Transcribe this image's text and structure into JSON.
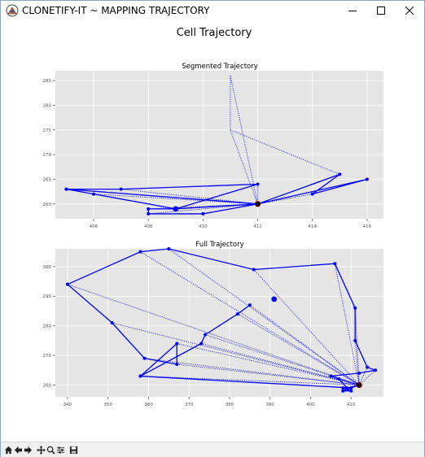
{
  "window": {
    "title": "CLONETIFY-IT ~ MAPPING TRAJECTORY",
    "icons": {
      "app": "clonetify-logo-icon",
      "minimize": "minimize-icon",
      "maximize": "maximize-icon",
      "close": "close-icon"
    }
  },
  "figure": {
    "suptitle": "Cell Trajectory"
  },
  "toolbar": {
    "icons": [
      "home-icon",
      "back-arrow-icon",
      "forward-arrow-icon",
      "pan-icon",
      "zoom-icon",
      "configure-subplots-icon",
      "save-icon"
    ]
  },
  "colors": {
    "axes_bg": "#e5e5e5",
    "grid": "#ffffff",
    "line": "#0000ff",
    "final_marker": "#000000",
    "final_marker_edge": "#8b0000"
  },
  "chart_data": [
    {
      "type": "line",
      "title": "Segmented Trajectory",
      "xlabel": "",
      "ylabel": "",
      "xlim": [
        404.6,
        416.6
      ],
      "ylim": [
        257,
        287
      ],
      "xticks": [
        406,
        408,
        410,
        412,
        414,
        416
      ],
      "yticks": [
        260,
        265,
        270,
        275,
        280,
        285
      ],
      "grid": true,
      "solid_path": [
        [
          405,
          263
        ],
        [
          406,
          262
        ],
        [
          409,
          259
        ],
        [
          412,
          260
        ],
        [
          410,
          258
        ],
        [
          408,
          258
        ],
        [
          408,
          259
        ],
        [
          409,
          259
        ],
        [
          412,
          264
        ],
        [
          407,
          263
        ],
        [
          405,
          263
        ],
        [
          412,
          260
        ],
        [
          416,
          265
        ],
        [
          414,
          262
        ],
        [
          415,
          266
        ],
        [
          412,
          260
        ]
      ],
      "dotted_segments": [
        [
          [
            411,
            286
          ],
          [
            412,
            260
          ]
        ],
        [
          [
            411,
            286
          ],
          [
            411,
            275
          ]
        ],
        [
          [
            411,
            275
          ],
          [
            412,
            260
          ]
        ],
        [
          [
            411,
            275
          ],
          [
            415,
            266
          ]
        ],
        [
          [
            415,
            266
          ],
          [
            412,
            260
          ]
        ],
        [
          [
            407,
            263
          ],
          [
            412,
            260
          ]
        ],
        [
          [
            405,
            263
          ],
          [
            412,
            260
          ]
        ],
        [
          [
            406,
            262
          ],
          [
            412,
            260
          ]
        ],
        [
          [
            412,
            264
          ],
          [
            412,
            260
          ]
        ],
        [
          [
            414,
            262
          ],
          [
            412,
            260
          ]
        ],
        [
          [
            416,
            265
          ],
          [
            412,
            260
          ]
        ],
        [
          [
            408,
            258
          ],
          [
            412,
            260
          ]
        ],
        [
          [
            408,
            259
          ],
          [
            412,
            260
          ]
        ],
        [
          [
            410,
            258
          ],
          [
            412,
            260
          ]
        ],
        [
          [
            409,
            259
          ],
          [
            412,
            260
          ]
        ]
      ],
      "start_point": [
        409,
        259
      ],
      "end_point": [
        412,
        260
      ]
    },
    {
      "type": "line",
      "title": "Full Trajectory",
      "xlabel": "",
      "ylabel": "",
      "xlim": [
        337,
        418
      ],
      "ylim": [
        256,
        306
      ],
      "xticks": [
        340,
        350,
        360,
        370,
        380,
        390,
        400,
        410
      ],
      "yticks": [
        260,
        270,
        280,
        290,
        300
      ],
      "grid": true,
      "solid_path": [
        [
          340,
          294
        ],
        [
          358,
          305
        ],
        [
          365,
          306
        ],
        [
          386,
          299
        ],
        [
          406,
          301
        ],
        [
          411,
          286
        ],
        [
          411,
          275
        ],
        [
          414,
          266
        ],
        [
          416,
          265
        ],
        [
          412,
          264
        ],
        [
          405,
          263
        ],
        [
          407,
          262
        ],
        [
          409,
          259
        ],
        [
          412,
          260
        ],
        [
          408,
          258
        ],
        [
          410,
          258
        ],
        [
          408,
          259
        ],
        [
          410,
          259
        ],
        [
          358,
          263
        ],
        [
          367,
          274
        ],
        [
          367,
          267
        ],
        [
          359,
          269
        ],
        [
          351,
          281
        ],
        [
          340,
          294
        ]
      ],
      "extra_solid_segments": [
        [
          [
            358,
            263
          ],
          [
            373,
            274
          ],
          [
            374,
            277
          ],
          [
            382,
            284
          ],
          [
            385,
            287
          ]
        ]
      ],
      "dotted_segments": [
        [
          [
            340,
            294
          ],
          [
            412,
            260
          ]
        ],
        [
          [
            358,
            305
          ],
          [
            412,
            260
          ]
        ],
        [
          [
            365,
            306
          ],
          [
            412,
            260
          ]
        ],
        [
          [
            386,
            299
          ],
          [
            412,
            260
          ]
        ],
        [
          [
            406,
            301
          ],
          [
            412,
            260
          ]
        ],
        [
          [
            411,
            286
          ],
          [
            412,
            260
          ]
        ],
        [
          [
            411,
            275
          ],
          [
            412,
            260
          ]
        ],
        [
          [
            385,
            287
          ],
          [
            412,
            260
          ]
        ],
        [
          [
            382,
            284
          ],
          [
            412,
            260
          ]
        ],
        [
          [
            374,
            277
          ],
          [
            412,
            260
          ]
        ],
        [
          [
            373,
            274
          ],
          [
            412,
            260
          ]
        ],
        [
          [
            351,
            281
          ],
          [
            412,
            260
          ]
        ],
        [
          [
            359,
            269
          ],
          [
            412,
            260
          ]
        ],
        [
          [
            367,
            274
          ],
          [
            412,
            260
          ]
        ],
        [
          [
            367,
            267
          ],
          [
            412,
            260
          ]
        ],
        [
          [
            358,
            263
          ],
          [
            412,
            260
          ]
        ],
        [
          [
            414,
            266
          ],
          [
            412,
            260
          ]
        ],
        [
          [
            416,
            265
          ],
          [
            412,
            260
          ]
        ],
        [
          [
            405,
            263
          ],
          [
            412,
            260
          ]
        ],
        [
          [
            407,
            262
          ],
          [
            412,
            260
          ]
        ]
      ],
      "start_point": [
        391,
        289
      ],
      "end_point": [
        412,
        260
      ]
    }
  ]
}
